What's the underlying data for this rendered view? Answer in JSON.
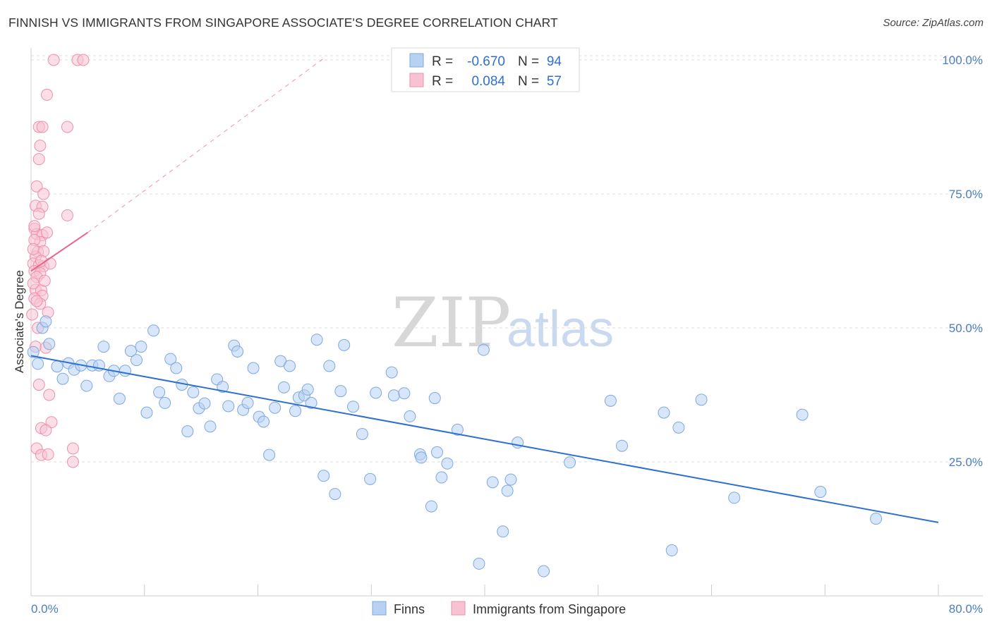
{
  "title": "FINNISH VS IMMIGRANTS FROM SINGAPORE ASSOCIATE'S DEGREE CORRELATION CHART",
  "source": "Source: ZipAtlas.com",
  "watermark": {
    "zip": "ZIP",
    "atlas": "atlas"
  },
  "colors": {
    "blue_fill": "#b7d1f3",
    "blue_stroke": "#7fa8df",
    "blue_line": "#2e6fd0",
    "pink_fill": "#f7c3d2",
    "pink_stroke": "#ee90ad",
    "pink_line": "#e8648c",
    "grid": "#dddddd",
    "axis_text": "#4a7cc4"
  },
  "legend": {
    "rows": [
      {
        "series": "Finns",
        "r_label": "R =",
        "r_value": "-0.670",
        "n_label": "N =",
        "n_value": "94"
      },
      {
        "series": "Immigrants from Singapore",
        "r_label": "R =",
        "r_value": "0.084",
        "n_label": "N =",
        "n_value": "57"
      }
    ]
  },
  "chart_data": {
    "type": "scatter",
    "title": "FINNISH VS IMMIGRANTS FROM SINGAPORE ASSOCIATE'S DEGREE CORRELATION CHART",
    "xlabel": "",
    "ylabel": "Associate's Degree",
    "xlim": [
      0,
      80
    ],
    "ylim": [
      0,
      102
    ],
    "x_tick_labels": [
      "0.0%",
      "80.0%"
    ],
    "y_tick_labels": [
      "25.0%",
      "50.0%",
      "75.0%",
      "100.0%"
    ],
    "y_ticks": [
      25,
      50,
      75,
      100
    ],
    "grid": true,
    "legend_position": "bottom",
    "series": [
      {
        "name": "Finns",
        "r": -0.67,
        "n": 94,
        "trend": {
          "x": [
            0,
            80
          ],
          "y": [
            44.8,
            13.7
          ],
          "style": "solid"
        },
        "points": [
          [
            0.2,
            45.5
          ],
          [
            1.0,
            50.0
          ],
          [
            1.3,
            51.2
          ],
          [
            1.6,
            47.0
          ],
          [
            2.3,
            42.8
          ],
          [
            2.8,
            40.5
          ],
          [
            3.3,
            43.4
          ],
          [
            3.8,
            42.2
          ],
          [
            4.4,
            43.0
          ],
          [
            4.9,
            39.2
          ],
          [
            5.4,
            43.0
          ],
          [
            6.0,
            43.0
          ],
          [
            6.4,
            46.5
          ],
          [
            6.9,
            41.0
          ],
          [
            7.3,
            42.0
          ],
          [
            7.8,
            36.8
          ],
          [
            8.3,
            42.0
          ],
          [
            8.8,
            45.7
          ],
          [
            9.3,
            44.0
          ],
          [
            9.7,
            46.5
          ],
          [
            10.2,
            34.2
          ],
          [
            10.8,
            49.5
          ],
          [
            11.3,
            38.0
          ],
          [
            11.8,
            36.0
          ],
          [
            12.3,
            44.2
          ],
          [
            12.8,
            42.5
          ],
          [
            13.3,
            39.4
          ],
          [
            13.8,
            30.7
          ],
          [
            14.3,
            38.0
          ],
          [
            14.8,
            35.0
          ],
          [
            15.3,
            35.9
          ],
          [
            15.8,
            31.6
          ],
          [
            16.4,
            40.4
          ],
          [
            16.9,
            39.0
          ],
          [
            17.4,
            35.4
          ],
          [
            17.9,
            46.7
          ],
          [
            18.2,
            45.6
          ],
          [
            18.7,
            34.7
          ],
          [
            19.1,
            36.0
          ],
          [
            19.6,
            42.5
          ],
          [
            20.1,
            33.4
          ],
          [
            20.5,
            32.5
          ],
          [
            21.0,
            26.3
          ],
          [
            21.5,
            35.1
          ],
          [
            22.0,
            43.8
          ],
          [
            22.3,
            38.9
          ],
          [
            22.8,
            42.9
          ],
          [
            23.3,
            34.5
          ],
          [
            23.6,
            37.0
          ],
          [
            24.1,
            37.4
          ],
          [
            24.4,
            38.5
          ],
          [
            24.7,
            36.0
          ],
          [
            25.2,
            47.8
          ],
          [
            25.8,
            22.4
          ],
          [
            26.3,
            42.9
          ],
          [
            26.8,
            19.0
          ],
          [
            27.3,
            38.2
          ],
          [
            27.6,
            46.8
          ],
          [
            28.4,
            35.3
          ],
          [
            29.2,
            30.2
          ],
          [
            29.9,
            21.8
          ],
          [
            30.4,
            37.9
          ],
          [
            31.8,
            41.7
          ],
          [
            32.0,
            37.4
          ],
          [
            32.9,
            37.8
          ],
          [
            33.4,
            33.5
          ],
          [
            34.3,
            26.4
          ],
          [
            34.4,
            25.8
          ],
          [
            35.3,
            16.7
          ],
          [
            35.6,
            36.9
          ],
          [
            35.8,
            26.8
          ],
          [
            36.2,
            22.1
          ],
          [
            36.7,
            24.7
          ],
          [
            37.6,
            31.0
          ],
          [
            39.5,
            6.0
          ],
          [
            39.9,
            45.9
          ],
          [
            40.7,
            21.2
          ],
          [
            41.6,
            12.0
          ],
          [
            42.0,
            19.6
          ],
          [
            42.3,
            21.7
          ],
          [
            42.9,
            28.6
          ],
          [
            45.2,
            4.6
          ],
          [
            47.5,
            24.9
          ],
          [
            51.1,
            36.4
          ],
          [
            52.1,
            28.0
          ],
          [
            55.8,
            34.2
          ],
          [
            56.5,
            8.5
          ],
          [
            57.1,
            31.4
          ],
          [
            59.1,
            36.6
          ],
          [
            62.0,
            18.3
          ],
          [
            68.0,
            33.8
          ],
          [
            69.6,
            19.4
          ],
          [
            74.5,
            14.4
          ],
          [
            0.6,
            43.3
          ]
        ]
      },
      {
        "name": "Immigrants from Singapore",
        "r": 0.084,
        "n": 57,
        "trend_solid": {
          "x": [
            0,
            5.0
          ],
          "y": [
            60.6,
            67.8
          ]
        },
        "trend_dashed": {
          "x": [
            5.0,
            26.0
          ],
          "y": [
            67.8,
            100.6
          ]
        },
        "points": [
          [
            2.0,
            100.0
          ],
          [
            4.1,
            100.0
          ],
          [
            4.6,
            100.0
          ],
          [
            1.4,
            93.5
          ],
          [
            0.7,
            87.5
          ],
          [
            1.0,
            87.5
          ],
          [
            3.2,
            87.5
          ],
          [
            0.8,
            84.0
          ],
          [
            0.7,
            81.5
          ],
          [
            0.5,
            76.4
          ],
          [
            1.1,
            75.0
          ],
          [
            0.4,
            72.8
          ],
          [
            1.0,
            72.6
          ],
          [
            0.7,
            71.3
          ],
          [
            3.2,
            71.0
          ],
          [
            0.3,
            68.5
          ],
          [
            0.5,
            67.5
          ],
          [
            1.0,
            67.3
          ],
          [
            1.4,
            67.8
          ],
          [
            0.8,
            66.0
          ],
          [
            0.3,
            66.4
          ],
          [
            0.6,
            64.2
          ],
          [
            1.1,
            64.3
          ],
          [
            0.4,
            63.3
          ],
          [
            0.2,
            62.0
          ],
          [
            0.7,
            61.7
          ],
          [
            1.1,
            61.5
          ],
          [
            0.3,
            60.6
          ],
          [
            0.8,
            60.2
          ],
          [
            0.5,
            59.5
          ],
          [
            0.4,
            57.1
          ],
          [
            0.9,
            57.0
          ],
          [
            1.0,
            56.0
          ],
          [
            0.3,
            55.5
          ],
          [
            0.8,
            54.5
          ],
          [
            1.5,
            52.9
          ],
          [
            0.1,
            52.5
          ],
          [
            0.4,
            46.5
          ],
          [
            1.3,
            46.3
          ],
          [
            0.7,
            39.4
          ],
          [
            1.6,
            37.5
          ],
          [
            1.8,
            32.4
          ],
          [
            0.9,
            31.3
          ],
          [
            1.3,
            30.9
          ],
          [
            0.5,
            27.5
          ],
          [
            3.7,
            27.5
          ],
          [
            0.9,
            26.3
          ],
          [
            1.5,
            26.4
          ],
          [
            3.7,
            25.0
          ],
          [
            0.2,
            58.3
          ],
          [
            0.6,
            50.0
          ],
          [
            0.3,
            69.0
          ],
          [
            1.2,
            58.8
          ],
          [
            0.5,
            55.0
          ],
          [
            0.9,
            62.5
          ],
          [
            0.2,
            64.7
          ],
          [
            1.7,
            62.0
          ]
        ]
      }
    ]
  }
}
